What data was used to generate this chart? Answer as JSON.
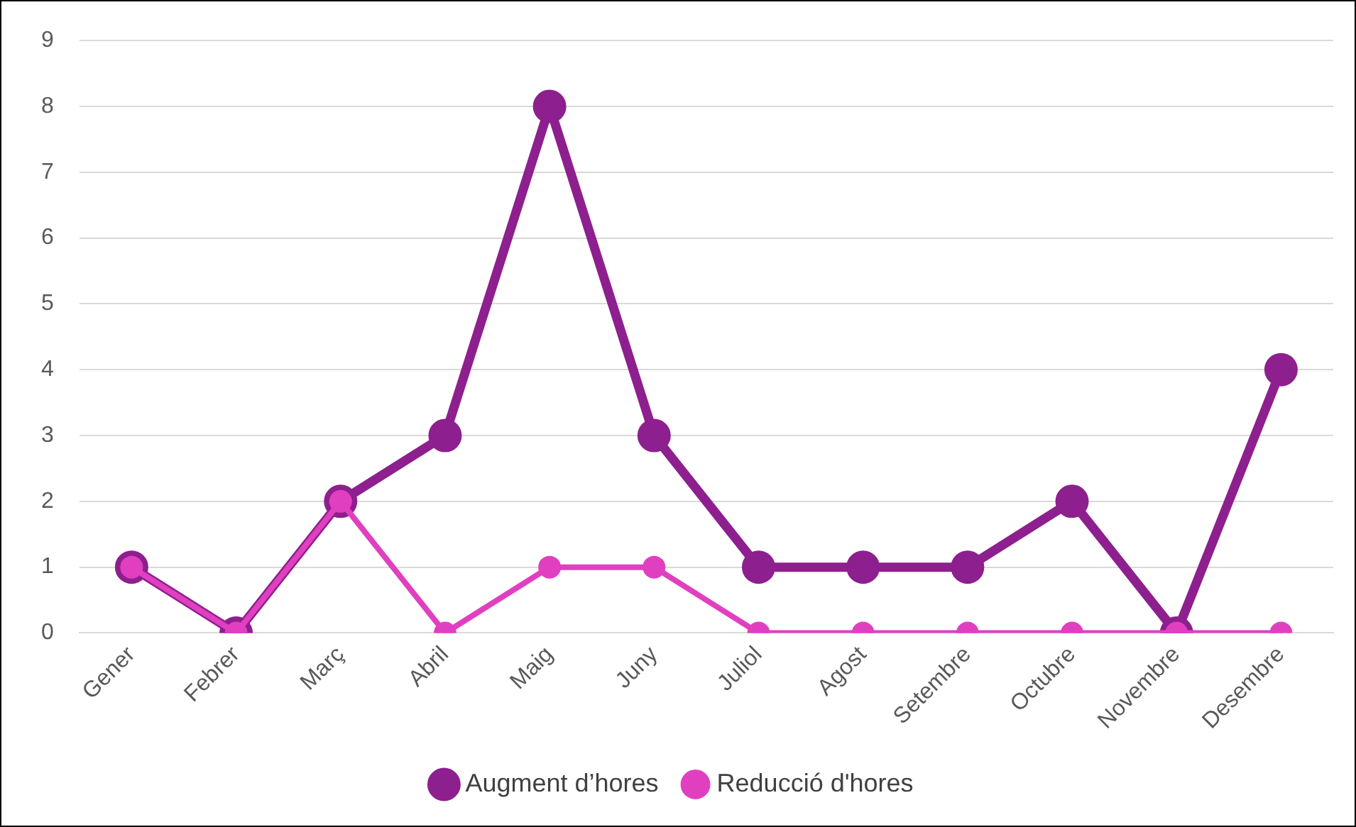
{
  "chart_data": {
    "type": "line",
    "categories": [
      "Gener",
      "Febrer",
      "Març",
      "Abril",
      "Maig",
      "Juny",
      "Juliol",
      "Agost",
      "Setembre",
      "Octubre",
      "Novembre",
      "Desembre"
    ],
    "series": [
      {
        "name": "Augment d’hores",
        "color": "#8e1f8e",
        "values": [
          1,
          0,
          2,
          3,
          8,
          3,
          1,
          1,
          1,
          2,
          0,
          4
        ]
      },
      {
        "name": "Reducció d'hores",
        "color": "#e040c0",
        "values": [
          1,
          0,
          2,
          0,
          1,
          1,
          0,
          0,
          0,
          0,
          0,
          0
        ]
      }
    ],
    "ylim": [
      0,
      9
    ],
    "yticks": [
      0,
      1,
      2,
      3,
      4,
      5,
      6,
      7,
      8,
      9
    ],
    "grid": "y",
    "legend": "bottom",
    "marker": "circle",
    "line_style": "solid"
  }
}
